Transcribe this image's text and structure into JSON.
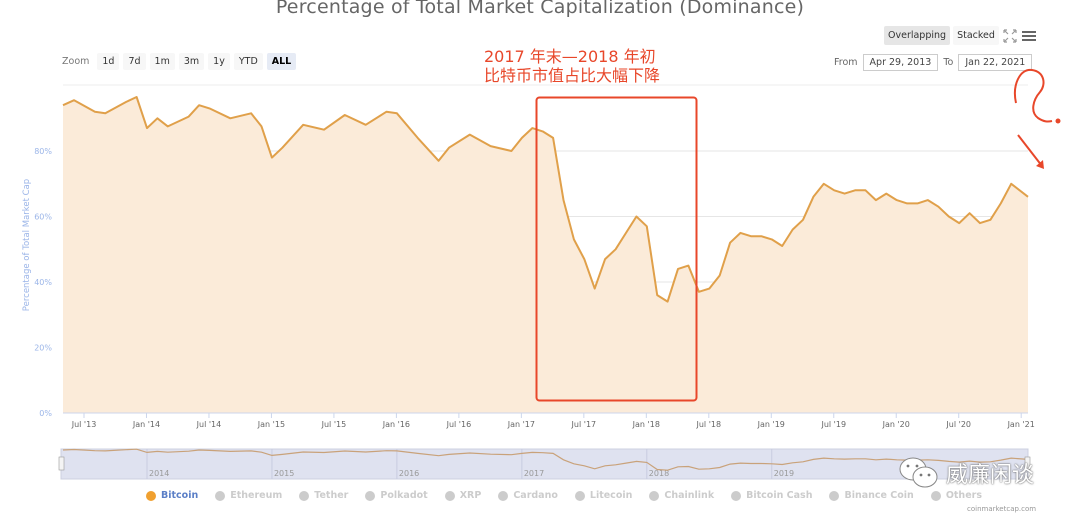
{
  "header": {
    "title": "Percentage of Total Market Capitalization (Dominance)"
  },
  "zoom_bar": {
    "label": "Zoom",
    "buttons": [
      {
        "label": "1d",
        "active": false
      },
      {
        "label": "7d",
        "active": false
      },
      {
        "label": "1m",
        "active": false
      },
      {
        "label": "3m",
        "active": false
      },
      {
        "label": "1y",
        "active": false
      },
      {
        "label": "YTD",
        "active": false
      },
      {
        "label": "ALL",
        "active": true
      }
    ]
  },
  "mode_bar": {
    "overlapping_label": "Overlapping",
    "stacked_label": "Stacked",
    "fullscreen_icon": "fullscreen-icon",
    "menu_icon": "hamburger-menu-icon"
  },
  "range": {
    "from_label": "From",
    "from_value": "Apr 29, 2013",
    "to_label": "To",
    "to_value": "Jan 22, 2021"
  },
  "annotation": {
    "line1": "2017 年末—2018 年初",
    "line2": "比特币市值占比大幅下降",
    "color": "#e8472a"
  },
  "navigator": {
    "year_labels": [
      "2014",
      "2015",
      "2016",
      "2017",
      "2018",
      "2019"
    ]
  },
  "legend": [
    {
      "label": "Bitcoin",
      "active": true,
      "color": "#f0a030"
    },
    {
      "label": "Ethereum",
      "active": false,
      "color": "#cccccc"
    },
    {
      "label": "Tether",
      "active": false,
      "color": "#cccccc"
    },
    {
      "label": "Polkadot",
      "active": false,
      "color": "#cccccc"
    },
    {
      "label": "XRP",
      "active": false,
      "color": "#cccccc"
    },
    {
      "label": "Cardano",
      "active": false,
      "color": "#cccccc"
    },
    {
      "label": "Litecoin",
      "active": false,
      "color": "#cccccc"
    },
    {
      "label": "Chainlink",
      "active": false,
      "color": "#cccccc"
    },
    {
      "label": "Bitcoin Cash",
      "active": false,
      "color": "#cccccc"
    },
    {
      "label": "Binance Coin",
      "active": false,
      "color": "#cccccc"
    },
    {
      "label": "Others",
      "active": false,
      "color": "#cccccc"
    }
  ],
  "watermark": {
    "text": "威廉闲谈"
  },
  "credit": "coinmarketcap.com",
  "colors": {
    "series_line": "#e0a04a",
    "series_fill": "#fbebd9",
    "axis_label": "#9bb5e8",
    "annotation_red": "#e8472a",
    "navigator_bg": "#dfe2f0"
  },
  "chart_data": {
    "type": "area",
    "title": "Percentage of Total Market Capitalization (Dominance)",
    "xlabel": "",
    "ylabel": "Percentage of Total Market Cap",
    "ylim": [
      0,
      100
    ],
    "yticks": [
      "0%",
      "20%",
      "40%",
      "60%",
      "80%"
    ],
    "xticks": [
      "Jul '13",
      "Jan '14",
      "Jul '14",
      "Jan '15",
      "Jul '15",
      "Jan '16",
      "Jul '16",
      "Jan '17",
      "Jul '17",
      "Jan '18",
      "Jul '18",
      "Jan '19",
      "Jul '19",
      "Jan '20",
      "Jul '20",
      "Jan '21"
    ],
    "grid": true,
    "legend_position": "bottom",
    "series": [
      {
        "name": "Bitcoin",
        "x": [
          "2013-04",
          "2013-06",
          "2013-08",
          "2013-09",
          "2013-11",
          "2013-12",
          "2014-01",
          "2014-02",
          "2014-03",
          "2014-05",
          "2014-06",
          "2014-07",
          "2014-09",
          "2014-11",
          "2014-12",
          "2015-01",
          "2015-02",
          "2015-04",
          "2015-06",
          "2015-08",
          "2015-10",
          "2015-12",
          "2016-01",
          "2016-03",
          "2016-05",
          "2016-06",
          "2016-08",
          "2016-10",
          "2016-12",
          "2017-01",
          "2017-02",
          "2017-03",
          "2017-04",
          "2017-05",
          "2017-06",
          "2017-07",
          "2017-08",
          "2017-09",
          "2017-10",
          "2017-11",
          "2017-12",
          "2018-01",
          "2018-02",
          "2018-03",
          "2018-04",
          "2018-05",
          "2018-06",
          "2018-07",
          "2018-08",
          "2018-09",
          "2018-10",
          "2018-11",
          "2018-12",
          "2019-01",
          "2019-02",
          "2019-03",
          "2019-04",
          "2019-05",
          "2019-06",
          "2019-07",
          "2019-08",
          "2019-09",
          "2019-10",
          "2019-11",
          "2019-12",
          "2020-01",
          "2020-02",
          "2020-03",
          "2020-04",
          "2020-05",
          "2020-06",
          "2020-07",
          "2020-08",
          "2020-09",
          "2020-10",
          "2020-11",
          "2020-12",
          "2021-01"
        ],
        "values": [
          94,
          95.5,
          92,
          91.5,
          95,
          96.5,
          87,
          90,
          87.5,
          90.5,
          94,
          93,
          90,
          91.5,
          87.5,
          78,
          81,
          88,
          86.5,
          91,
          88,
          92,
          91.5,
          84,
          77,
          81,
          85,
          81.5,
          80,
          84,
          87,
          86,
          84,
          65,
          53,
          47,
          38,
          47,
          50,
          55,
          60,
          57,
          36,
          34,
          44,
          45,
          37,
          38,
          42,
          52,
          55,
          54,
          54,
          53,
          51,
          56,
          59,
          66,
          70,
          68,
          67,
          68,
          68,
          65,
          67,
          65,
          64,
          64,
          65,
          63,
          60,
          58,
          61,
          58,
          59,
          64,
          70,
          66
        ]
      }
    ]
  }
}
